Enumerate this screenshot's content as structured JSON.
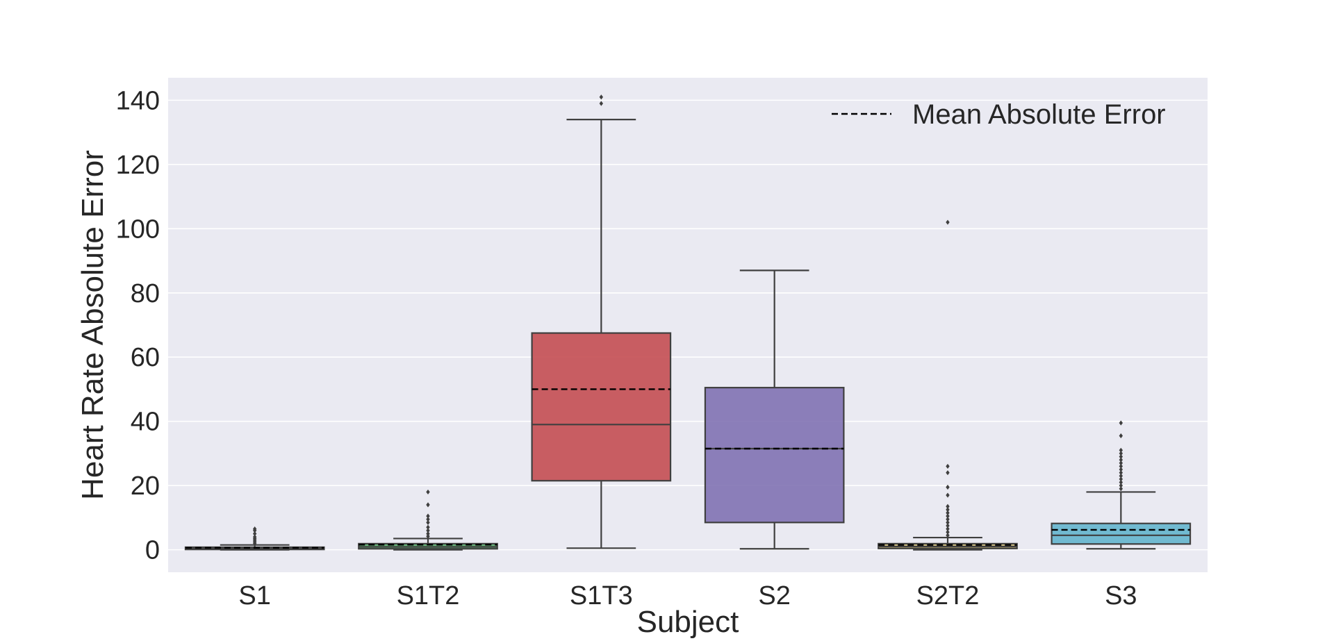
{
  "chart_data": {
    "type": "box",
    "xlabel": "Subject",
    "ylabel": "Heart Rate Absolute Error",
    "ylim": [
      -7,
      147
    ],
    "yticks": [
      0,
      20,
      40,
      60,
      80,
      100,
      120,
      140
    ],
    "grid": true,
    "background": "#eaeaf2",
    "legend": {
      "label": "Mean Absolute Error",
      "placement": "top-right",
      "line_style": "dashed",
      "color": "#000000"
    },
    "boxes": [
      {
        "category": "S1",
        "color": "#4c72b0",
        "whisker_low": 0.0,
        "q1": 0.1,
        "median": 0.4,
        "q3": 0.8,
        "whisker_high": 1.5,
        "mean": 0.6,
        "outliers": [
          2.0,
          2.5,
          3.0,
          3.5,
          4.0,
          5.0,
          6.0,
          6.5
        ]
      },
      {
        "category": "S1T2",
        "color": "#55a868",
        "whisker_low": 0.0,
        "q1": 0.3,
        "median": 0.9,
        "q3": 1.9,
        "whisker_high": 3.5,
        "mean": 1.6,
        "outliers": [
          4.2,
          5.0,
          6.0,
          7.0,
          8.5,
          9.5,
          10.5,
          14.0,
          18.0
        ]
      },
      {
        "category": "S1T3",
        "color": "#c44e52",
        "whisker_low": 0.5,
        "q1": 21.5,
        "median": 39.0,
        "q3": 67.5,
        "whisker_high": 134.0,
        "mean": 50.0,
        "outliers": [
          139.0,
          141.0
        ]
      },
      {
        "category": "S2",
        "color": "#8172b3",
        "whisker_low": 0.3,
        "q1": 8.5,
        "median": 31.5,
        "q3": 50.5,
        "whisker_high": 87.0,
        "mean": 31.5,
        "outliers": []
      },
      {
        "category": "S2T2",
        "color": "#ccb974",
        "whisker_low": 0.0,
        "q1": 0.4,
        "median": 1.0,
        "q3": 1.9,
        "whisker_high": 3.8,
        "mean": 1.5,
        "outliers": [
          4.5,
          5.5,
          6.5,
          7.5,
          8.5,
          9.5,
          10.5,
          11.5,
          12.5,
          13.5,
          17.0,
          19.5,
          24.0,
          26.0,
          102.0
        ]
      },
      {
        "category": "S3",
        "color": "#64b5cd",
        "whisker_low": 0.3,
        "q1": 1.8,
        "median": 4.5,
        "q3": 8.2,
        "whisker_high": 18.0,
        "mean": 6.2,
        "outliers": [
          19.0,
          20.0,
          21.0,
          22.0,
          23.0,
          24.0,
          25.0,
          26.0,
          27.0,
          28.0,
          29.0,
          30.0,
          31.0,
          35.5,
          39.5
        ]
      }
    ]
  }
}
